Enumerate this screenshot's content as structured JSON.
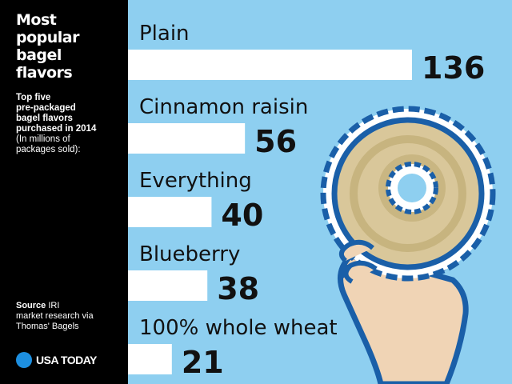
{
  "sidebar": {
    "title": "Most\npopular\nbagel\nflavors",
    "subtitle": "Top five\npre-packaged\nbagel flavors\npurchased in 2014",
    "subtitle_note": "(In millions of\npackages sold):",
    "source_label": "Source",
    "source_text": " IRI\nmarket research via\nThomas' Bagels",
    "logo_text": "USA TODAY"
  },
  "colors": {
    "background": "#8ecff0",
    "sidebar": "#000000",
    "bar": "#ffffff",
    "text": "#111111",
    "logo_dot": "#1d8fe0"
  },
  "chart_data": {
    "type": "bar",
    "orientation": "horizontal",
    "title": "Most popular bagel flavors",
    "categories": [
      "Plain",
      "Cinnamon raisin",
      "Everything",
      "Blueberry",
      "100% whole wheat"
    ],
    "values": [
      136,
      56,
      40,
      38,
      21
    ],
    "value_labels": [
      "136",
      "56",
      "40",
      "38",
      "21"
    ],
    "xlim": [
      0,
      136
    ],
    "grid": false
  }
}
